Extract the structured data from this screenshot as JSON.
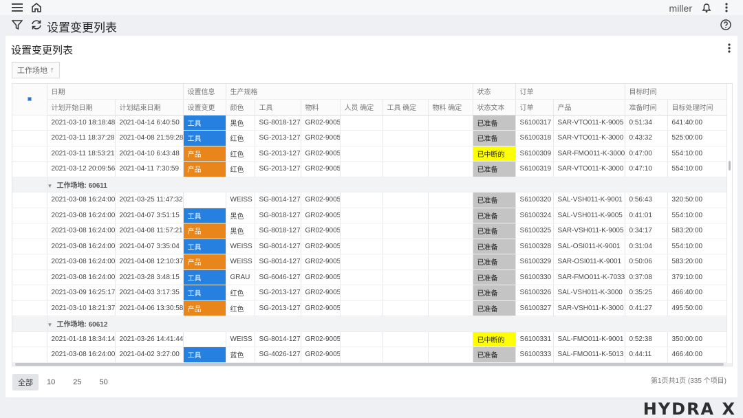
{
  "topbar": {
    "user": "miller"
  },
  "titlebar": {
    "title": "设置变更列表"
  },
  "panel": {
    "title": "设置变更列表",
    "chip_label": "工作场地",
    "chip_arrow": "↑"
  },
  "header": {
    "bands": [
      "日期",
      "设置信息",
      "生产规格",
      "状态",
      "订单",
      "目标时间"
    ],
    "columns": [
      "计划开始日期",
      "计划结束日期",
      "设置变更",
      "颜色",
      "工具",
      "物料",
      "人员 确定",
      "工具 确定",
      "物料 确定",
      "状态文本",
      "订单",
      "产品",
      "准备时间",
      "目标处理时间"
    ]
  },
  "rows": [
    {
      "type": "data",
      "start": "2021-03-10 18:18:48",
      "end": "2021-04-14 6:40:50",
      "change": "工具",
      "color": "黑色",
      "tool": "SG-8018-127",
      "material": "GR02-9005",
      "status": "已准备",
      "order": "S6100317",
      "product": "SAR-VTO011-K-9005",
      "prep": "0:51:34",
      "target": "641:40:00"
    },
    {
      "type": "data",
      "start": "2021-03-11 18:37:28",
      "end": "2021-04-08 21:59:28",
      "change": "工具",
      "color": "红色",
      "tool": "SG-2013-127",
      "material": "GR02-9005",
      "status": "已准备",
      "order": "S6100318",
      "product": "SAR-VTO011-K-3000",
      "prep": "0:43:32",
      "target": "525:00:00"
    },
    {
      "type": "data",
      "start": "2021-03-11 18:53:21",
      "end": "2021-04-10 6:43:48",
      "change": "产品",
      "color": "红色",
      "tool": "SG-2013-127",
      "material": "GR02-9005",
      "status": "已中断的",
      "order": "S6100309",
      "product": "SAR-FMO011-K-3000",
      "prep": "0:47:00",
      "target": "554:10:00"
    },
    {
      "type": "data",
      "start": "2021-03-12 20:09:56",
      "end": "2021-04-11 7:30:59",
      "change": "产品",
      "color": "红色",
      "tool": "SG-2013-127",
      "material": "GR02-9005",
      "status": "已准备",
      "order": "S6100319",
      "product": "SAR-VTO011-K-3000",
      "prep": "0:47:10",
      "target": "554:10:00"
    },
    {
      "type": "group",
      "label": "工作场地: 60611"
    },
    {
      "type": "data",
      "start": "2021-03-08 16:24:00",
      "end": "2021-03-25 11:47:32",
      "change": "",
      "color": "WEISS",
      "tool": "SG-8014-127",
      "material": "GR02-9005",
      "status": "已准备",
      "order": "S6100320",
      "product": "SAL-VSH011-K-9001",
      "prep": "0:56:43",
      "target": "320:50:00"
    },
    {
      "type": "data",
      "start": "2021-03-08 16:24:00",
      "end": "2021-04-07 3:51:15",
      "change": "工具",
      "color": "黑色",
      "tool": "SG-8018-127",
      "material": "GR02-9005",
      "status": "已准备",
      "order": "S6100324",
      "product": "SAL-VSH011-K-9005",
      "prep": "0:41:01",
      "target": "554:10:00"
    },
    {
      "type": "data",
      "start": "2021-03-08 16:24:00",
      "end": "2021-04-08 11:57:21",
      "change": "产品",
      "color": "黑色",
      "tool": "SG-8018-127",
      "material": "GR02-9005",
      "status": "已准备",
      "order": "S6100325",
      "product": "SAR-VSH011-K-9005",
      "prep": "0:34:17",
      "target": "583:20:00"
    },
    {
      "type": "data",
      "start": "2021-03-08 16:24:00",
      "end": "2021-04-07 3:35:04",
      "change": "工具",
      "color": "WEISS",
      "tool": "SG-8014-127",
      "material": "GR02-9005",
      "status": "已准备",
      "order": "S6100328",
      "product": "SAL-OSI011-K-9001",
      "prep": "0:31:04",
      "target": "554:10:00"
    },
    {
      "type": "data",
      "start": "2021-03-08 16:24:00",
      "end": "2021-04-08 12:10:37",
      "change": "产品",
      "color": "WEISS",
      "tool": "SG-8014-127",
      "material": "GR02-9005",
      "status": "已准备",
      "order": "S6100329",
      "product": "SAR-OSI011-K-9001",
      "prep": "0:50:06",
      "target": "583:20:00"
    },
    {
      "type": "data",
      "start": "2021-03-08 16:24:00",
      "end": "2021-03-28 3:48:15",
      "change": "工具",
      "color": "GRAU",
      "tool": "SG-6046-127",
      "material": "GR02-9005",
      "status": "已准备",
      "order": "S6100330",
      "product": "SAR-FMO011-K-7033",
      "prep": "0:37:08",
      "target": "379:10:00"
    },
    {
      "type": "data",
      "start": "2021-03-09 16:25:17",
      "end": "2021-04-03 3:17:35",
      "change": "工具",
      "color": "红色",
      "tool": "SG-2013-127",
      "material": "GR02-9005",
      "status": "已准备",
      "order": "S6100326",
      "product": "SAL-VSH011-K-3000",
      "prep": "0:35:25",
      "target": "466:40:00"
    },
    {
      "type": "data",
      "start": "2021-03-10 18:21:37",
      "end": "2021-04-06 13:30:58",
      "change": "产品",
      "color": "红色",
      "tool": "SG-2013-127",
      "material": "GR02-9005",
      "status": "已准备",
      "order": "S6100327",
      "product": "SAR-VSH011-K-3000",
      "prep": "0:41:27",
      "target": "495:50:00"
    },
    {
      "type": "group",
      "label": "工作场地: 60612"
    },
    {
      "type": "data",
      "start": "2021-01-18 18:34:14",
      "end": "2021-03-26 14:41:44",
      "change": "",
      "color": "WEISS",
      "tool": "SG-8014-127",
      "material": "GR02-9005",
      "status": "已中断的",
      "order": "S6100331",
      "product": "SAL-FMO011-K-9001",
      "prep": "0:52:38",
      "target": "350:00:00"
    },
    {
      "type": "data",
      "start": "2021-03-08 16:24:00",
      "end": "2021-04-02 3:27:00",
      "change": "工具",
      "color": "蓝色",
      "tool": "SG-4026-127",
      "material": "GR02-9005",
      "status": "已准备",
      "order": "S6100333",
      "product": "SAL-FMO011-K-5013",
      "prep": "0:44:11",
      "target": "466:40:00"
    }
  ],
  "colors": {
    "tool_change": "#2580e0",
    "product_change": "#e8861c",
    "status_ready": "#c4c4c4",
    "status_interrupted": "#ffff00"
  },
  "pager": {
    "options": [
      "全部",
      "10",
      "25",
      "50"
    ],
    "selected": "全部",
    "info": "第1页共1页 (335 个项目)"
  },
  "brand": "HYDRA X"
}
